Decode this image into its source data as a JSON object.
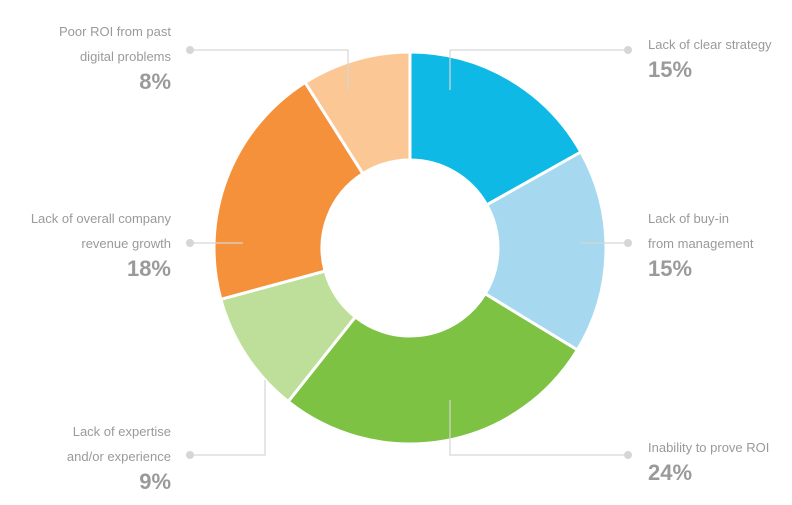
{
  "chart_data": {
    "type": "donut",
    "categories": [
      [
        "Lack of clear strategy"
      ],
      [
        "Lack of buy-in",
        "from management"
      ],
      [
        "Inability to prove ROI"
      ],
      [
        "Lack of expertise",
        "and/or experience"
      ],
      [
        "Lack of overall company",
        "revenue growth"
      ],
      [
        "Poor ROI from past",
        "digital problems"
      ]
    ],
    "values": [
      15,
      15,
      24,
      9,
      18,
      8
    ],
    "value_labels": [
      "15%",
      "15%",
      "24%",
      "9%",
      "18%",
      "8%"
    ],
    "colors": [
      "#0fb9e6",
      "#a6d9ef",
      "#7dc242",
      "#bedf9a",
      "#f5913a",
      "#fbc895"
    ]
  }
}
